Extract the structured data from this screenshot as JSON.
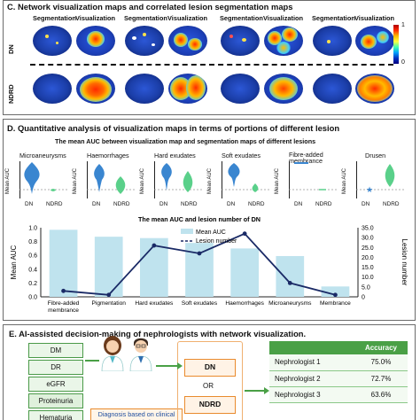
{
  "panel_c": {
    "title": "C. Network visualization maps and correlated lesion segmentation maps",
    "col_labels": [
      "Segmentation",
      "Visualization",
      "Segmentation",
      "Visualization",
      "Segmentation",
      "Visualization",
      "Segmentation",
      "Visualization"
    ],
    "row_labels": [
      "DN",
      "NDRD"
    ],
    "colorbar": {
      "max": "1",
      "min": "0"
    }
  },
  "panel_d": {
    "title": "D. Quantitative analysis of visualization maps in terms of portions of different lesion",
    "subtitle": "The mean  AUC between visualization map and segmentation maps of different lesions",
    "mini_ylabel": "Mean AUC",
    "mini_groups": [
      "DN",
      "NDRD"
    ],
    "mini_charts": [
      {
        "title": "Microaneurysms"
      },
      {
        "title": "Haemorrhages"
      },
      {
        "title": "Hard exudates"
      },
      {
        "title": "Soft exudates"
      },
      {
        "title": "Fibre-added membrance"
      },
      {
        "title": "Drusen"
      }
    ]
  },
  "chart_data": {
    "type": "bar",
    "title": "The mean  AUC and lesion number of  DN",
    "categories": [
      "Fibre-added membrance",
      "Pigmentation",
      "Hard exudates",
      "Soft exudates",
      "Haemorrhages",
      "Microaneurysms",
      "Membrance"
    ],
    "series": [
      {
        "name": "Mean AUC",
        "type": "bar",
        "axis": "left",
        "values": [
          0.97,
          0.87,
          0.85,
          0.78,
          0.7,
          0.59,
          0.15
        ]
      },
      {
        "name": "Lesion number",
        "type": "line",
        "axis": "right",
        "values": [
          3,
          1,
          26,
          22,
          32,
          7,
          1
        ]
      }
    ],
    "ylabel": "Mean AUC",
    "ylabel_right": "Lesion number",
    "ylim": [
      0.0,
      1.0
    ],
    "ylim_right": [
      0,
      35
    ],
    "yticks": [
      "0.0",
      "0.2",
      "0.4",
      "0.6",
      "0.8",
      "1.0"
    ],
    "yticks_right": [
      "0",
      "5.0",
      "10.0",
      "15.0",
      "20.0",
      "25.0",
      "30.0",
      "35.0"
    ],
    "legend": "top-center"
  },
  "panel_e": {
    "title": "E. AI-assisted decision-making of nephrologists with network visualization.",
    "features": [
      "DM",
      "DR",
      "eGFR",
      "Proteinuria",
      "Hematuria"
    ],
    "diagnosis_note": "Diagnosis based on clinical characteristics",
    "options": {
      "top": "DN",
      "or": "OR",
      "bottom": "NDRD"
    },
    "table": {
      "header": [
        "",
        "Accuracy"
      ],
      "rows": [
        {
          "name": "Nephrologist 1",
          "accuracy": "75.0%"
        },
        {
          "name": "Nephrologist 2",
          "accuracy": "72.7%"
        },
        {
          "name": "Nephrologist 3",
          "accuracy": "63.6%"
        }
      ]
    }
  },
  "colors": {
    "bar": "#bfe3ee",
    "line": "#1a2a66",
    "green": "#4aa046",
    "orange": "#e98b2d",
    "violin_blue": "#3a86d0",
    "violin_green": "#5ad08a"
  }
}
